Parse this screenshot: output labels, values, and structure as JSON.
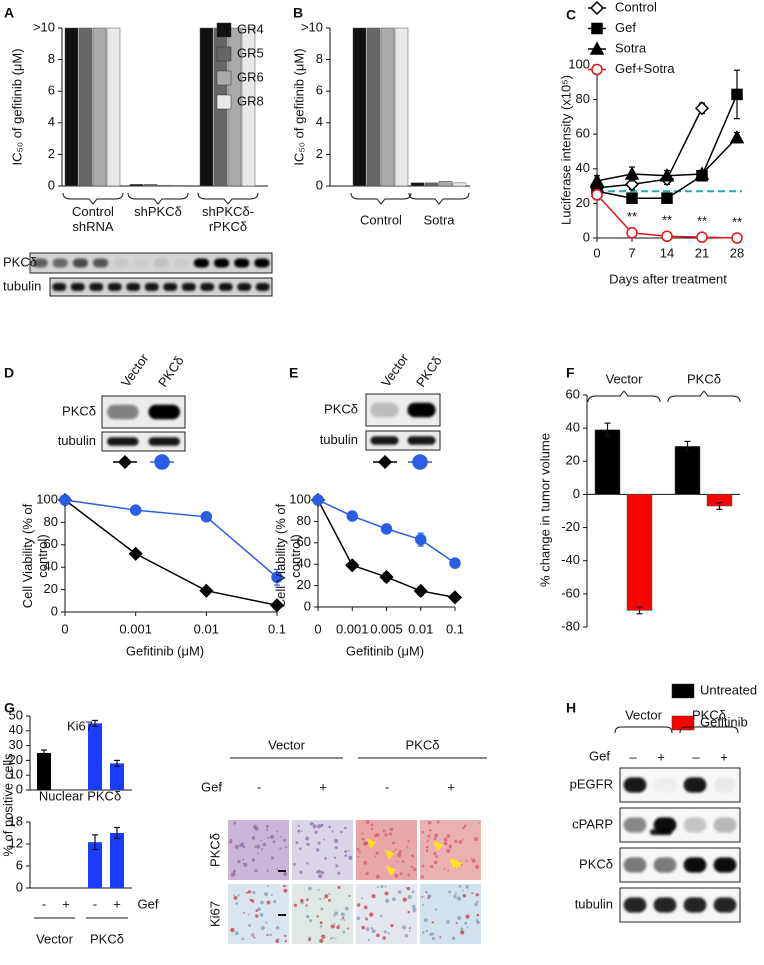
{
  "chart_data": [
    {
      "panel": "A",
      "type": "bar",
      "categories": [
        "Control shRNA",
        "shPKCδ",
        "shPKCδ-rPKCδ"
      ],
      "series": [
        {
          "name": "GR4",
          "color": "#111111",
          "values": [
            10,
            0.1,
            10
          ]
        },
        {
          "name": "GR5",
          "color": "#666666",
          "values": [
            10,
            0.1,
            10
          ]
        },
        {
          "name": "GR6",
          "color": "#aaaaaa",
          "values": [
            10,
            0.05,
            10
          ]
        },
        {
          "name": "GR8",
          "color": "#e8e8e8",
          "values": [
            10,
            0.05,
            10
          ]
        }
      ],
      "ylabel": "IC₅₀ of gefitinib (μM)",
      "ylim": [
        0,
        10
      ],
      "yticks": [
        0,
        2,
        4,
        6,
        8,
        {
          "value": 10,
          "label": ">10"
        }
      ],
      "blot_rows": [
        "PKCδ",
        "tubulin"
      ]
    },
    {
      "panel": "B",
      "type": "bar",
      "categories": [
        "Control",
        "Sotra"
      ],
      "series": [
        {
          "color": "#111111",
          "values": [
            10,
            0.2
          ]
        },
        {
          "color": "#666666",
          "values": [
            10,
            0.2
          ]
        },
        {
          "color": "#aaaaaa",
          "values": [
            10,
            0.3
          ]
        },
        {
          "color": "#e8e8e8",
          "values": [
            10,
            0.2
          ]
        }
      ],
      "ylabel": "IC₅₀ of gefitinib (μM)",
      "ylim": [
        0,
        10
      ],
      "yticks": [
        0,
        2,
        4,
        6,
        8,
        {
          "value": 10,
          "label": ">10"
        }
      ]
    },
    {
      "panel": "C",
      "type": "line",
      "x": [
        0,
        7,
        14,
        21,
        28
      ],
      "xlim": [
        0,
        29
      ],
      "xticks": [
        0,
        7,
        14,
        21,
        28
      ],
      "ylim": [
        0,
        100
      ],
      "yticks": [
        0,
        20,
        40,
        60,
        80,
        100
      ],
      "xlabel": "Days after treatment",
      "ylabel": "Luciferase intensity (x10⁵)",
      "reference_line": {
        "value": 27,
        "color": "#2aa7b5"
      },
      "series": [
        {
          "name": "Control",
          "color": "#000000",
          "marker": "diamond",
          "filled": false,
          "values": [
            29,
            31,
            34,
            75,
            null
          ],
          "errors": [
            2,
            3,
            3,
            3,
            null
          ]
        },
        {
          "name": "Gef",
          "color": "#000000",
          "marker": "square",
          "filled": true,
          "values": [
            27,
            23,
            23,
            36,
            83
          ],
          "errors": [
            2,
            2,
            2,
            3,
            14
          ]
        },
        {
          "name": "Sotra",
          "color": "#000000",
          "marker": "triangle",
          "filled": true,
          "values": [
            33,
            37,
            36,
            37,
            58
          ],
          "errors": [
            3,
            4,
            3,
            2,
            3
          ]
        },
        {
          "name": "Gef+Sotra",
          "color": "#e8141b",
          "marker": "circle",
          "filled": false,
          "values": [
            25,
            3,
            1,
            0.5,
            0
          ],
          "errors": [
            3,
            1,
            0.5,
            0.5,
            0.5
          ],
          "annotations": [
            null,
            "**",
            "**",
            "**",
            "**"
          ]
        }
      ]
    },
    {
      "panel": "D",
      "type": "line",
      "categories": [
        "0",
        "0.001",
        "0.01",
        "0.1"
      ],
      "ylim": [
        0,
        100
      ],
      "yticks": [
        0,
        20,
        40,
        60,
        80,
        100
      ],
      "xlabel": "Gefitinib (μM)",
      "ylabel": "Cell Viability (% of control)",
      "blot_columns": [
        "Vector",
        "PKCδ"
      ],
      "blot_rows": [
        "PKCδ",
        "tubulin"
      ],
      "series": [
        {
          "color": "#000000",
          "marker": "diamond",
          "filled": true,
          "values": [
            100,
            52,
            19,
            6
          ],
          "errors": [
            0,
            2,
            2,
            2
          ]
        },
        {
          "color": "#2b5ce6",
          "marker": "circle",
          "filled": true,
          "values": [
            100,
            91,
            85,
            31
          ],
          "errors": [
            0,
            3,
            3,
            7
          ]
        }
      ]
    },
    {
      "panel": "E",
      "type": "line",
      "categories": [
        "0",
        "0.001",
        "0.005",
        "0.01",
        "0.1"
      ],
      "ylim": [
        0,
        100
      ],
      "yticks": [
        0,
        20,
        40,
        60,
        80,
        100
      ],
      "xlabel": "Gefitinib (μM)",
      "ylabel": "Cell Viability (% of control)",
      "blot_columns": [
        "Vector",
        "PKCδ"
      ],
      "blot_rows": [
        "PKCδ",
        "tubulin"
      ],
      "series": [
        {
          "color": "#000000",
          "marker": "diamond",
          "filled": true,
          "values": [
            100,
            39,
            28,
            15,
            9
          ],
          "errors": [
            0,
            3,
            4,
            4,
            3
          ]
        },
        {
          "color": "#2b5ce6",
          "marker": "circle",
          "filled": true,
          "values": [
            100,
            85,
            73,
            63,
            41
          ],
          "errors": [
            0,
            3,
            4,
            6,
            4
          ]
        }
      ]
    },
    {
      "panel": "F",
      "type": "bar",
      "categories": [
        "Vector",
        "PKCδ"
      ],
      "ylabel": "% change in tumor volume",
      "ylim": [
        -80,
        60
      ],
      "yticks": [
        -80,
        -60,
        -40,
        -20,
        0,
        20,
        40,
        60
      ],
      "series": [
        {
          "name": "Untreated",
          "color": "#000000",
          "values": [
            39,
            29
          ],
          "errors": [
            4,
            3
          ]
        },
        {
          "name": "Gefitinib",
          "color": "#ff0000",
          "values": [
            -70,
            -7
          ],
          "errors": [
            2,
            2
          ]
        }
      ]
    },
    {
      "panel": "G",
      "type": "bar",
      "title": "Ki67",
      "values": [
        25,
        null,
        45,
        18
      ],
      "errors": [
        2,
        null,
        2,
        2
      ],
      "colors": [
        "#000000",
        "#000000",
        "#1a3cff",
        "#1a3cff"
      ],
      "ylim": [
        0,
        50
      ],
      "yticks": [
        0,
        10,
        20,
        30,
        40,
        50
      ]
    },
    {
      "type": "bar",
      "title": "Nuclear PKCδ",
      "categories": [
        "-",
        "+",
        "-",
        "+"
      ],
      "values": [
        null,
        null,
        12.5,
        15
      ],
      "errors": [
        null,
        null,
        2,
        1.5
      ],
      "colors": [
        "#000000",
        "#000000",
        "#1a3cff",
        "#1a3cff"
      ],
      "ylim": [
        0,
        18
      ],
      "yticks": [
        0,
        6,
        12,
        18
      ]
    }
  ],
  "panel_G": {
    "ylabel": "% of positive cells",
    "treatment": "Gef",
    "groups": [
      "Vector",
      "PKCδ"
    ],
    "micrograph": {
      "columns": [
        "Vector",
        "PKCδ"
      ],
      "treatment": "Gef",
      "signs": [
        "-",
        "+",
        "-",
        "+"
      ],
      "rows": [
        "PKCδ",
        "Ki67"
      ]
    }
  },
  "panel_H": {
    "letter": "H",
    "columns": [
      "Vector",
      "PKCδ"
    ],
    "treatment": "Gef",
    "signs": [
      "–",
      "+",
      "–",
      "+"
    ],
    "rows": [
      "pEGFR",
      "cPARP",
      "PKCδ",
      "tubulin"
    ]
  }
}
